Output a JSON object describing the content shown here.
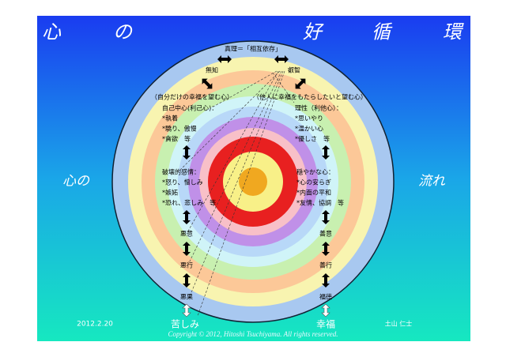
{
  "header": {
    "title": [
      "心",
      "の",
      "好",
      "循",
      "環"
    ],
    "left": "心の",
    "right": "流れ"
  },
  "top": {
    "truth": "真理＝「相互依存」",
    "ignorance": "無知",
    "wisdom": "叡智"
  },
  "left": {
    "wish": "（自分だけの幸福を望む心）",
    "mind": [
      "自己中心(利己心)：",
      "*執着",
      "*驕り、傲慢",
      "*貪欲　等"
    ],
    "emotion": [
      "破壊的感情：",
      "*怒り、憎しみ",
      "*嫉妬",
      "*恐れ、悲しみ　等"
    ],
    "steps": [
      "悪意",
      "悪行",
      "悪果"
    ],
    "result": "苦しみ"
  },
  "right": {
    "wish": "（他人に幸福をもたらしたいと望む心）",
    "mind": [
      "理性（利他心）：",
      "*思いやり",
      "*温かい心",
      "*優しさ　等"
    ],
    "emotion": [
      "穏やかな心：",
      "*心の安らぎ",
      "*内面の平和",
      "*友情、協調　等"
    ],
    "steps": [
      "善意",
      "善行",
      "福徳"
    ],
    "result": "幸福"
  },
  "footer": {
    "date": "2012.2.20",
    "author": "土山 仁士",
    "copyright": "Copyright © 2012, Hitoshi Tsuchiyama. All rights reserved."
  }
}
